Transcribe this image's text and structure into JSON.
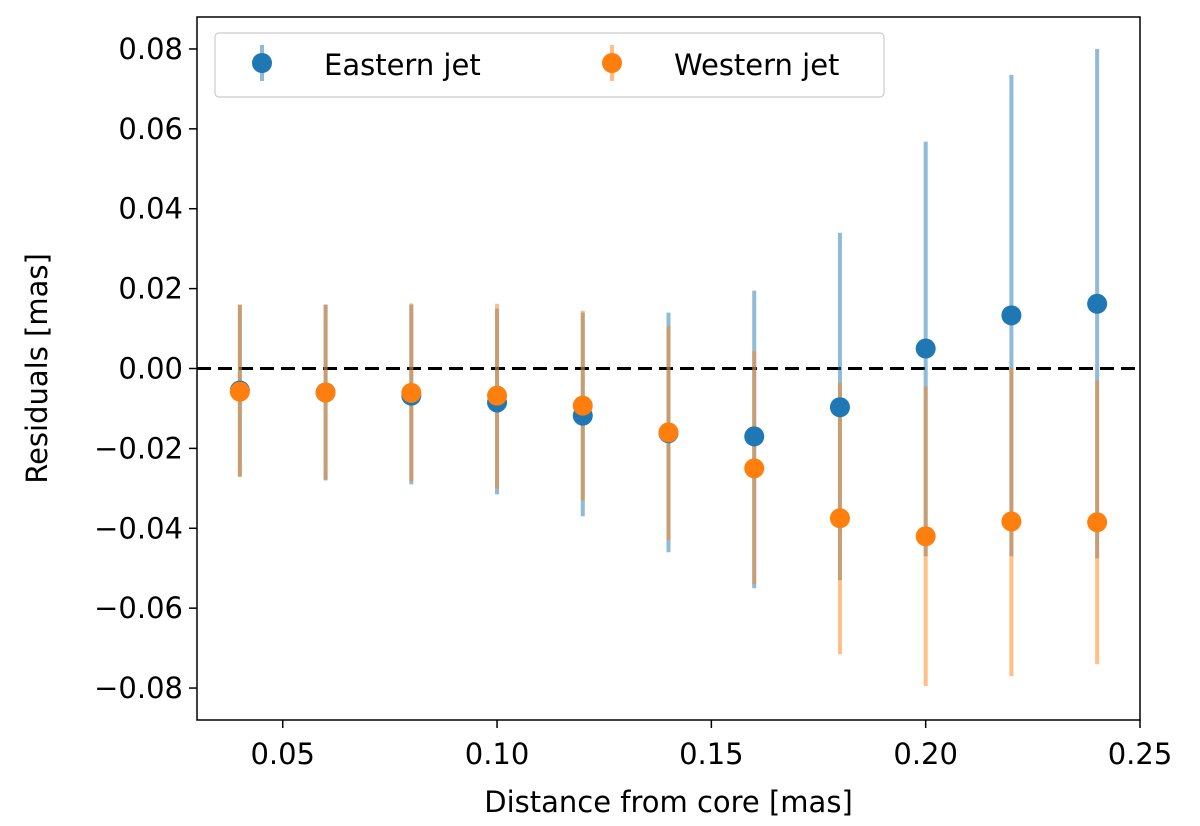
{
  "chart_data": {
    "type": "scatter",
    "title": "",
    "xlabel": "Distance from core [mas]",
    "ylabel": "Residuals [mas]",
    "xlim": [
      0.03,
      0.25
    ],
    "ylim": [
      -0.088,
      0.088
    ],
    "xticks": [
      0.05,
      0.1,
      0.15,
      0.2,
      0.25
    ],
    "xtick_labels": [
      "0.05",
      "0.10",
      "0.15",
      "0.20",
      "0.25"
    ],
    "yticks": [
      0.08,
      0.06,
      0.04,
      0.02,
      0.0,
      -0.02,
      -0.04,
      -0.06,
      -0.08
    ],
    "ytick_labels": [
      "0.08",
      "0.06",
      "0.04",
      "0.02",
      "0.00",
      "−0.02",
      "−0.04",
      "−0.06",
      "−0.08"
    ],
    "grid": false,
    "reference_line": {
      "y": 0.0,
      "style": "dashed",
      "color": "#000000"
    },
    "legend": {
      "position": "top-left",
      "columns": 2
    },
    "x": [
      0.04,
      0.06,
      0.08,
      0.1,
      0.12,
      0.14,
      0.16,
      0.18,
      0.2,
      0.22,
      0.24
    ],
    "series": [
      {
        "name": "Eastern jet",
        "color": "#1f77b4",
        "values": [
          -0.0055,
          -0.006,
          -0.0068,
          -0.0085,
          -0.0118,
          -0.0162,
          -0.017,
          -0.0097,
          0.005,
          0.0133,
          0.0162
        ],
        "err_low": [
          -0.027,
          -0.028,
          -0.029,
          -0.0315,
          -0.037,
          -0.046,
          -0.055,
          -0.053,
          -0.047,
          -0.047,
          -0.0475
        ],
        "err_high": [
          0.016,
          0.016,
          0.016,
          0.015,
          0.014,
          0.014,
          0.0195,
          0.034,
          0.0568,
          0.0735,
          0.08
        ]
      },
      {
        "name": "Western jet",
        "color": "#ff7f0e",
        "values": [
          -0.0058,
          -0.006,
          -0.0061,
          -0.0068,
          -0.0093,
          -0.016,
          -0.025,
          -0.0375,
          -0.042,
          -0.0383,
          -0.0385
        ],
        "err_low": [
          -0.0272,
          -0.0278,
          -0.0283,
          -0.03,
          -0.033,
          -0.043,
          -0.054,
          -0.0715,
          -0.0795,
          -0.077,
          -0.074
        ],
        "err_high": [
          0.016,
          0.016,
          0.0163,
          0.0162,
          0.0145,
          0.0107,
          0.0043,
          -0.0035,
          -0.0045,
          0.0002,
          -0.003
        ]
      }
    ]
  }
}
